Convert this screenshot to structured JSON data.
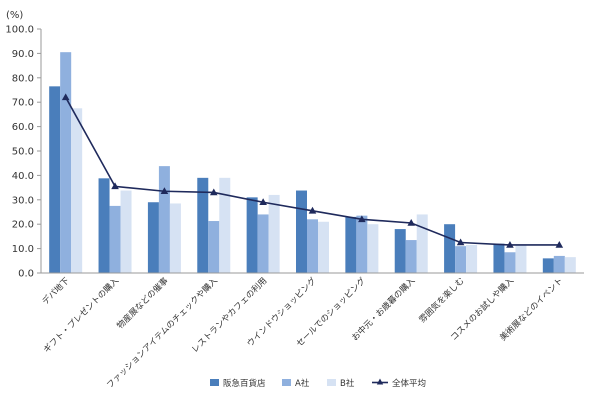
{
  "chart_data": {
    "type": "bar",
    "y_unit_label": "(%)",
    "ylim": [
      0,
      100
    ],
    "yticks": [
      "0.0",
      "10.0",
      "20.0",
      "30.0",
      "40.0",
      "50.0",
      "60.0",
      "70.0",
      "80.0",
      "90.0",
      "100.0"
    ],
    "categories": [
      "デパ地下",
      "ギフト・プレゼントの購入",
      "物産展などの催事",
      "ファッションアイテムのチェックや購入",
      "レストランやカフェの利用",
      "ウインドウショッピング",
      "セールでのショッピング",
      "お中元・お歳暮の購入",
      "雰囲気を楽しむ",
      "コスメのお試しや購入",
      "美術展などのイベント"
    ],
    "series": [
      {
        "name": "阪急百貨店",
        "kind": "bar",
        "color": "#4a7ebb",
        "values": [
          76.5,
          38.8,
          29.0,
          39.0,
          31.0,
          33.8,
          23.0,
          18.0,
          20.0,
          12.0,
          6.0
        ]
      },
      {
        "name": "A社",
        "kind": "bar",
        "color": "#8fb0de",
        "values": [
          90.5,
          27.5,
          43.8,
          21.3,
          24.0,
          22.0,
          23.5,
          13.5,
          11.0,
          8.5,
          7.0
        ]
      },
      {
        "name": "B社",
        "kind": "bar",
        "color": "#d6e2f3",
        "values": [
          67.5,
          33.8,
          28.5,
          39.0,
          32.0,
          21.0,
          20.0,
          24.0,
          11.5,
          11.5,
          6.5
        ]
      },
      {
        "name": "全体平均",
        "kind": "line",
        "color": "#1f2a5c",
        "values": [
          72.0,
          35.5,
          33.5,
          33.0,
          29.0,
          25.5,
          22.0,
          20.5,
          12.5,
          11.5,
          11.5
        ]
      }
    ],
    "legend_position": "bottom",
    "grid": false
  }
}
